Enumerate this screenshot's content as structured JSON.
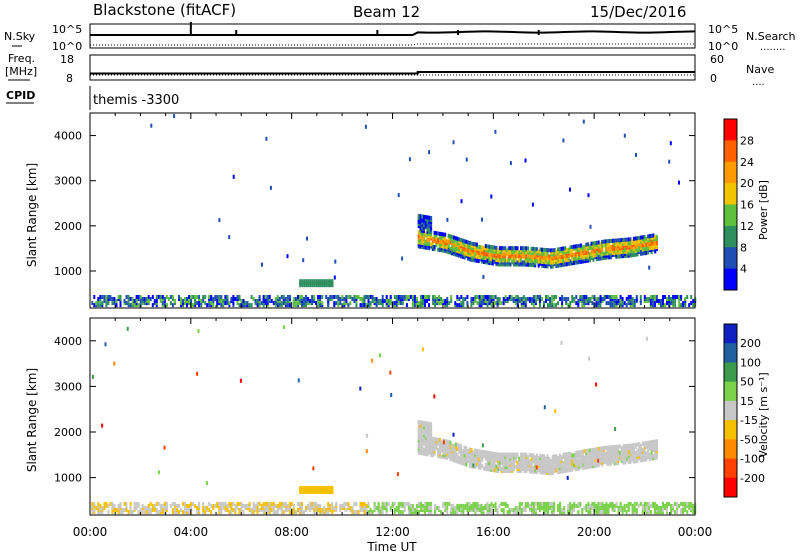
{
  "header": {
    "station": "Blackstone (fitACF)",
    "beam": "Beam 12",
    "date": "15/Dec/2016"
  },
  "top_panel": {
    "left_label_1": "N.Sky",
    "left_label_2": "Freq.",
    "left_label_3": "[MHz]",
    "left_label_4": "CPID",
    "right_label_1": "N.Search",
    "right_label_2": "Nave",
    "dots": "........",
    "dots_short": "....",
    "nsky_ticks": [
      "10^5",
      "10^0"
    ],
    "nsearch_ticks": [
      "10^5",
      "10^0"
    ],
    "freq_ticks": [
      "18",
      "8"
    ],
    "nave_ticks": [
      "60",
      "0"
    ],
    "cpid_text": "themis -3300"
  },
  "chart_data": [
    {
      "type": "heatmap",
      "panel": "power",
      "ylabel": "Slant Range [km]",
      "ylim": [
        180,
        4500
      ],
      "yticks": [
        "4000",
        "3000",
        "2000",
        "1000"
      ],
      "colorbar": {
        "label": "Power [dB]",
        "ticks": [
          "28",
          "24",
          "20",
          "16",
          "12",
          "8",
          "4"
        ],
        "colors": [
          "#ff0000",
          "#ff6000",
          "#ff9a00",
          "#f2c400",
          "#5fbf3f",
          "#2f8f5f",
          "#1f4fb4",
          "#0000ff"
        ]
      },
      "ionospheric_band": {
        "x_start": 13.0,
        "x_end": 22.5,
        "center_km": [
          1700,
          1600,
          1400,
          1300,
          1300,
          1250,
          1350,
          1450,
          1500,
          1600
        ],
        "thickness_km": 400
      },
      "ground_scatter_km": [
        200,
        400
      ],
      "grid": false
    },
    {
      "type": "heatmap",
      "panel": "velocity",
      "ylabel": "Slant Range [km]",
      "ylim": [
        180,
        4500
      ],
      "yticks": [
        "4000",
        "3000",
        "2000",
        "1000"
      ],
      "colorbar": {
        "label": "Velocity [m s⁻¹]",
        "ticks": [
          "200",
          "100",
          "50",
          "15",
          "-15",
          "-50",
          "-100",
          "-200"
        ],
        "colors": [
          "#1020c0",
          "#2060a0",
          "#3c9a4c",
          "#7ad14a",
          "#c8c8c8",
          "#f5c000",
          "#ff8a00",
          "#ff4000",
          "#ff0000"
        ]
      },
      "grid": false
    }
  ],
  "x_axis": {
    "label": "Time UT",
    "ticks": [
      "00:00",
      "04:00",
      "08:00",
      "12:00",
      "16:00",
      "20:00",
      "00:00"
    ],
    "xlim": [
      0,
      24
    ]
  },
  "colors": {
    "ground_scatter": "#c8c8c8",
    "axis": "#000000"
  }
}
